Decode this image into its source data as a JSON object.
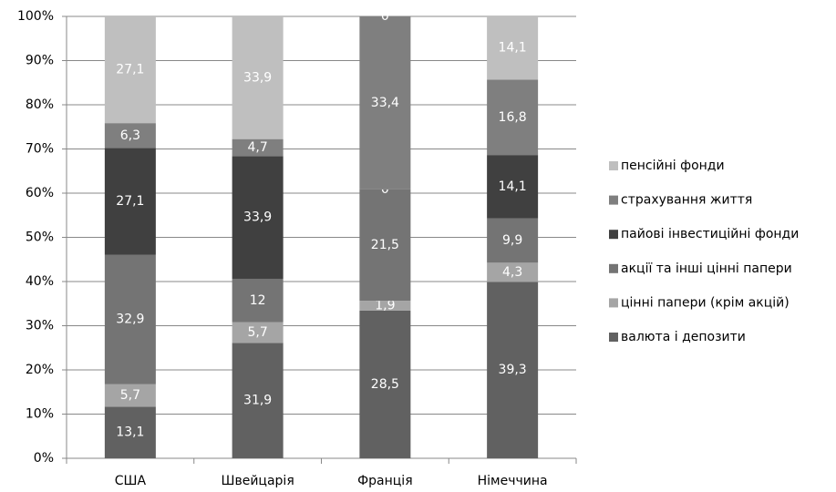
{
  "chart_data": {
    "type": "bar",
    "stacking": "percent",
    "categories": [
      "США",
      "Швейцарія",
      "Франція",
      "Німеччина"
    ],
    "series": [
      {
        "name": "валюта і депозити",
        "color": "#616161",
        "values": [
          13.1,
          31.9,
          28.5,
          39.3
        ],
        "value_labels": [
          "13,1",
          "31,9",
          "28,5",
          "39,3"
        ]
      },
      {
        "name": "цінні папери (крім акцій)",
        "color": "#a5a5a5",
        "values": [
          5.7,
          5.7,
          1.9,
          4.3
        ],
        "value_labels": [
          "5,7",
          "5,7",
          "1,9",
          "4,3"
        ]
      },
      {
        "name": "акції та інші цінні папери",
        "color": "#747474",
        "values": [
          32.9,
          12,
          21.5,
          9.9
        ],
        "value_labels": [
          "32,9",
          "12",
          "21,5",
          "9,9"
        ]
      },
      {
        "name": "пайові інвестиційні фонди",
        "color": "#404040",
        "values": [
          27.1,
          33.9,
          0,
          14.1
        ],
        "value_labels": [
          "27,1",
          "33,9",
          "0",
          "14,1"
        ]
      },
      {
        "name": "страхування життя",
        "color": "#7f7f7f",
        "values": [
          6.3,
          4.7,
          33.4,
          16.8
        ],
        "value_labels": [
          "6,3",
          "4,7",
          "33,4",
          "16,8"
        ]
      },
      {
        "name": "пенсійні фонди",
        "color": "#bfbfbf",
        "values": [
          27.1,
          33.9,
          0,
          14.1
        ],
        "value_labels": [
          "27,1",
          "33,9",
          "0",
          "14,1"
        ]
      }
    ],
    "ylim": [
      0,
      100
    ],
    "yticks": [
      {
        "value": 0,
        "label": "0%"
      },
      {
        "value": 10,
        "label": "10%"
      },
      {
        "value": 20,
        "label": "20%"
      },
      {
        "value": 30,
        "label": "30%"
      },
      {
        "value": 40,
        "label": "40%"
      },
      {
        "value": 50,
        "label": "50%"
      },
      {
        "value": 60,
        "label": "60%"
      },
      {
        "value": 70,
        "label": "70%"
      },
      {
        "value": 80,
        "label": "80%"
      },
      {
        "value": 90,
        "label": "90%"
      },
      {
        "value": 100,
        "label": "100%"
      }
    ],
    "grid": true,
    "legend": "right"
  }
}
